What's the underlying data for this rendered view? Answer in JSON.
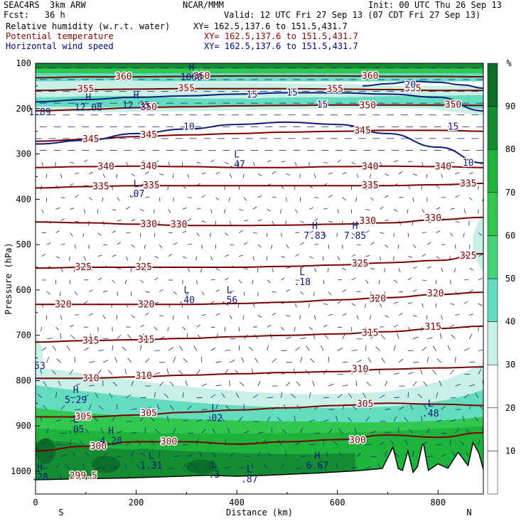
{
  "header": {
    "model": "SEAC4RS  3km ARW",
    "org": "NCAR/MMM",
    "init": "Init: 00 UTC Thu 26 Sep 13",
    "fcst": "Fcst:   36 h",
    "valid": "Valid: 12 UTC Fri 27 Sep 13 (07 CDT Fri 27 Sep 13)",
    "fields": [
      {
        "name": "Relative humidity (w.r.t. water)",
        "xy": "XY= 162.5,137.6 to 151.5,431.7",
        "color": "#000000"
      },
      {
        "name": "Potential temperature",
        "xy": "XY= 162.5,137.6 to 151.5,431.7",
        "color": "#8b0000"
      },
      {
        "name": "Horizontal wind speed",
        "xy": "XY= 162.5,137.6 to 151.5,431.7",
        "color": "#00008b"
      }
    ]
  },
  "chart_data": {
    "type": "heatmap",
    "xlabel": "Distance (km)",
    "ylabel": "Pressure (hPa)",
    "xlim": [
      0,
      890
    ],
    "ylim": [
      1050,
      100
    ],
    "x_ticks": [
      "0",
      "200",
      "400",
      "600",
      "800"
    ],
    "y_ticks": [
      "100",
      "200",
      "300",
      "400",
      "500",
      "600",
      "700",
      "800",
      "900",
      "1000"
    ],
    "x_end_labels": {
      "left": "S",
      "right": "N"
    },
    "colorbar": {
      "unit": "%",
      "levels": [
        10,
        20,
        30,
        40,
        50,
        60,
        70,
        80,
        90
      ],
      "colors": [
        "#ffffff",
        "#ffffff",
        "#ffffff",
        "#c8f0e6",
        "#64dcbe",
        "#46d278",
        "#32c850",
        "#1eb43c",
        "#148c32",
        "#0a6e28"
      ]
    },
    "theta_contours": [
      {
        "value": 300,
        "pressure": [
          955,
          945,
          935,
          935,
          940,
          935,
          930,
          920,
          925,
          915
        ]
      },
      {
        "value": 305,
        "pressure": [
          880,
          880,
          876,
          870,
          865,
          860,
          855,
          850,
          852,
          855
        ]
      },
      {
        "value": 310,
        "pressure": [
          795,
          795,
          792,
          788,
          785,
          782,
          780,
          775,
          772,
          770
        ]
      },
      {
        "value": 315,
        "pressure": [
          715,
          712,
          710,
          707,
          703,
          700,
          697,
          692,
          685,
          680
        ]
      },
      {
        "value": 320,
        "pressure": [
          632,
          632,
          632,
          632,
          630,
          627,
          622,
          617,
          610,
          605
        ]
      },
      {
        "value": 325,
        "pressure": [
          552,
          550,
          550,
          550,
          550,
          548,
          545,
          540,
          535,
          520
        ]
      },
      {
        "value": 330,
        "pressure": [
          450,
          452,
          455,
          458,
          458,
          457,
          455,
          452,
          445,
          440
        ]
      },
      {
        "value": 335,
        "pressure": [
          375,
          372,
          370,
          370,
          370,
          370,
          370,
          370,
          368,
          365
        ]
      },
      {
        "value": 340,
        "pressure": [
          330,
          328,
          327,
          328,
          330,
          330,
          328,
          327,
          328,
          330
        ]
      },
      {
        "value": 345,
        "pressure": [
          272,
          268,
          262,
          258,
          255,
          252,
          250,
          248,
          248,
          250
        ]
      },
      {
        "value": 350,
        "pressure": [
          205,
          202,
          198,
          196,
          194,
          193,
          192,
          192,
          192,
          193
        ]
      },
      {
        "value": 355,
        "pressure": [
          160,
          158,
          157,
          156,
          156,
          156,
          157,
          158,
          160,
          160
        ]
      },
      {
        "value": 360,
        "pressure": [
          132,
          130,
          130,
          129,
          128,
          128,
          128,
          129,
          129,
          130
        ]
      }
    ],
    "theta_x": [
      0,
      100,
      200,
      300,
      400,
      500,
      600,
      700,
      800,
      890
    ],
    "wind_speed_contours": [
      {
        "value": 10,
        "x": [
          0,
          100,
          200,
          300,
          400,
          500,
          600,
          700,
          800,
          890
        ],
        "pressure": [
          278,
          270,
          255,
          245,
          235,
          230,
          235,
          255,
          285,
          320
        ]
      },
      {
        "value": 15,
        "x": [
          0,
          100,
          200,
          300,
          400,
          500,
          600,
          700,
          800,
          890
        ],
        "pressure": [
          185,
          180,
          175,
          172,
          168,
          165,
          165,
          168,
          175,
          205
        ]
      },
      {
        "value": 20,
        "x": [
          650,
          700,
          750,
          800,
          850,
          890
        ],
        "pressure": [
          150,
          145,
          140,
          142,
          148,
          155
        ]
      }
    ],
    "theta_labels": [
      {
        "text": "360",
        "x": 175,
        "p": 130
      },
      {
        "text": "355",
        "x": 100,
        "p": 157
      },
      {
        "text": "355",
        "x": 300,
        "p": 156
      },
      {
        "text": "355",
        "x": 595,
        "p": 157
      },
      {
        "text": "355",
        "x": 750,
        "p": 156
      },
      {
        "text": "360",
        "x": 665,
        "p": 128
      },
      {
        "text": "350",
        "x": 225,
        "p": 197
      },
      {
        "text": "350",
        "x": 660,
        "p": 193
      },
      {
        "text": "350",
        "x": 830,
        "p": 192
      },
      {
        "text": "345",
        "x": 110,
        "p": 268
      },
      {
        "text": "345",
        "x": 225,
        "p": 258
      },
      {
        "text": "345",
        "x": 650,
        "p": 249
      },
      {
        "text": "340",
        "x": 140,
        "p": 328
      },
      {
        "text": "340",
        "x": 225,
        "p": 327
      },
      {
        "text": "340",
        "x": 665,
        "p": 328
      },
      {
        "text": "340",
        "x": 810,
        "p": 328
      },
      {
        "text": "335",
        "x": 130,
        "p": 372
      },
      {
        "text": "335",
        "x": 230,
        "p": 370
      },
      {
        "text": "335",
        "x": 665,
        "p": 370
      },
      {
        "text": "335",
        "x": 860,
        "p": 366
      },
      {
        "text": "330",
        "x": 225,
        "p": 455
      },
      {
        "text": "330",
        "x": 285,
        "p": 456
      },
      {
        "text": "330",
        "x": 660,
        "p": 448
      },
      {
        "text": "330",
        "x": 790,
        "p": 442
      },
      {
        "text": "325",
        "x": 95,
        "p": 550
      },
      {
        "text": "325",
        "x": 215,
        "p": 550
      },
      {
        "text": "325",
        "x": 645,
        "p": 542
      },
      {
        "text": "325",
        "x": 860,
        "p": 525
      },
      {
        "text": "320",
        "x": 55,
        "p": 632
      },
      {
        "text": "320",
        "x": 220,
        "p": 632
      },
      {
        "text": "320",
        "x": 680,
        "p": 620
      },
      {
        "text": "320",
        "x": 795,
        "p": 608
      },
      {
        "text": "315",
        "x": 110,
        "p": 712
      },
      {
        "text": "315",
        "x": 220,
        "p": 710
      },
      {
        "text": "315",
        "x": 665,
        "p": 695
      },
      {
        "text": "315",
        "x": 790,
        "p": 682
      },
      {
        "text": "310",
        "x": 110,
        "p": 795
      },
      {
        "text": "310",
        "x": 215,
        "p": 790
      },
      {
        "text": "310",
        "x": 645,
        "p": 775
      },
      {
        "text": "305",
        "x": 95,
        "p": 880
      },
      {
        "text": "305",
        "x": 225,
        "p": 872
      },
      {
        "text": "305",
        "x": 655,
        "p": 852
      },
      {
        "text": "300",
        "x": 125,
        "p": 945
      },
      {
        "text": "300",
        "x": 265,
        "p": 935
      },
      {
        "text": "300",
        "x": 640,
        "p": 932
      },
      {
        "text": "299.5",
        "x": 95,
        "p": 1010
      },
      {
        "text": "360",
        "x": 330,
        "p": 128
      }
    ],
    "wind_labels": [
      {
        "text": "15",
        "x": 510,
        "p": 165
      },
      {
        "text": "15",
        "x": 430,
        "p": 170
      },
      {
        "text": "15",
        "x": 570,
        "p": 192
      },
      {
        "text": "10",
        "x": 305,
        "p": 240
      },
      {
        "text": "15",
        "x": 830,
        "p": 240
      },
      {
        "text": "10",
        "x": 860,
        "p": 320
      },
      {
        "text": "20",
        "x": 745,
        "p": 148
      }
    ],
    "extrema": [
      {
        "type": "H",
        "value": "12.08",
        "x": 105,
        "p": 195
      },
      {
        "type": "H",
        "value": "12.35",
        "x": 200,
        "p": 190
      },
      {
        "type": "L",
        "value": ".47",
        "x": 400,
        "p": 320
      },
      {
        "type": "L",
        "value": ".07",
        "x": 200,
        "p": 385
      },
      {
        "type": "H",
        "value": "7.83",
        "x": 555,
        "p": 478
      },
      {
        "type": "H",
        "value": "7.85",
        "x": 635,
        "p": 478
      },
      {
        "type": "L",
        "value": ".18",
        "x": 530,
        "p": 580
      },
      {
        "type": "L",
        "value": ".40",
        "x": 300,
        "p": 620
      },
      {
        "type": "L",
        "value": ".56",
        "x": 385,
        "p": 620
      },
      {
        "type": "H",
        "value": "5.29",
        "x": 80,
        "p": 840
      },
      {
        "type": "L",
        "value": ".02",
        "x": 355,
        "p": 880
      },
      {
        "type": "L",
        "value": ".48",
        "x": 785,
        "p": 870
      },
      {
        "type": "L",
        "value": ".05",
        "x": 80,
        "p": 905
      },
      {
        "type": "H",
        "value": "4.28",
        "x": 150,
        "p": 930
      },
      {
        "type": "L",
        "value": "1.31",
        "x": 230,
        "p": 985
      },
      {
        "type": "L",
        "value": ".3",
        "x": 355,
        "p": 1005
      },
      {
        "type": "L",
        "value": ".87",
        "x": 425,
        "p": 1015
      },
      {
        "type": "H",
        "value": "6.67",
        "x": 560,
        "p": 985
      },
      {
        "type": "H",
        "value": ".28",
        "x": 0,
        "p": 1010
      },
      {
        "type": "",
        "value": "53",
        "x": 0,
        "p": 765
      },
      {
        "type": "",
        "value": "1.89",
        "x": 0,
        "p": 205
      },
      {
        "type": "H",
        "value": "1060",
        "x": 310,
        "p": 128
      }
    ],
    "terrain": {
      "x": [
        0,
        80,
        180,
        290,
        340,
        400,
        460,
        560,
        640,
        690,
        710,
        720,
        730,
        740,
        750,
        760,
        770,
        780,
        800,
        820,
        840,
        860,
        870,
        880,
        890
      ],
      "pressure": [
        1020,
        1018,
        1016,
        1012,
        1010,
        1012,
        1010,
        1005,
        1000,
        995,
        950,
        995,
        1000,
        960,
        1005,
        990,
        940,
        1000,
        985,
        995,
        960,
        990,
        940,
        960,
        1000
      ]
    }
  }
}
